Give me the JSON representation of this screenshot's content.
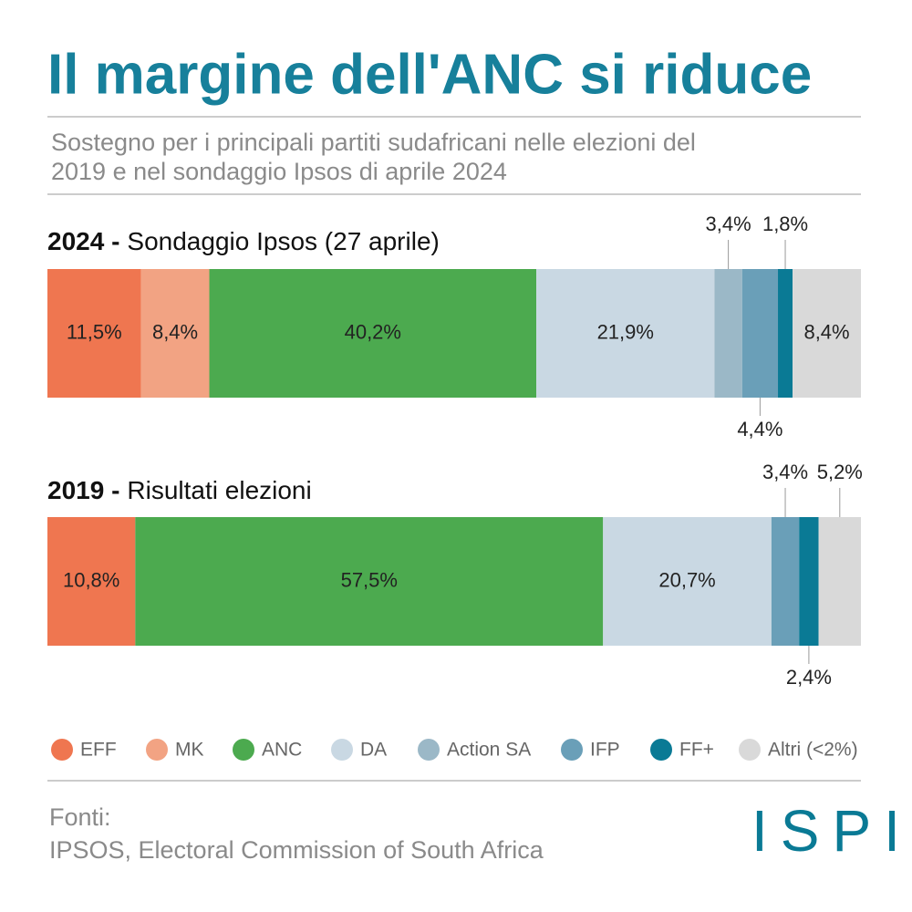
{
  "title": "Il margine dell'ANC si riduce",
  "subtitle": [
    "Sostegno per i principali partiti sudafricani nelle elezioni del",
    "2019 e nel sondaggio Ipsos di aprile 2024"
  ],
  "chart_data": [
    {
      "type": "stacked-bar",
      "label": "2024 -",
      "title": "Sondaggio Ipsos (27 aprile)",
      "series": [
        {
          "name": "EFF",
          "color": "#ef7650",
          "values": [
            11.5
          ],
          "value_labels": [
            "11,5%"
          ]
        },
        {
          "name": "MK",
          "color": "#f2a383",
          "values": [
            8.4
          ],
          "value_labels": [
            "8,4%"
          ]
        },
        {
          "name": "ANC",
          "color": "#4caa4f",
          "values": [
            40.2
          ],
          "value_labels": [
            "40,2%"
          ]
        },
        {
          "name": "DA",
          "color": "#c9d8e3",
          "values": [
            21.9
          ],
          "value_labels": [
            "21,9%"
          ]
        },
        {
          "name": "Action SA",
          "color": "#9bb8c7",
          "values": [
            3.4
          ],
          "value_labels": [
            "3,4%"
          ]
        },
        {
          "name": "IFP",
          "color": "#6a9fb8",
          "values": [
            4.4
          ],
          "value_labels": [
            "4,4%"
          ]
        },
        {
          "name": "FF+",
          "color": "#0a7a95",
          "values": [
            1.8
          ],
          "value_labels": [
            "1,8%"
          ]
        },
        {
          "name": "Altri (<2%)",
          "color": "#d9d9d9",
          "values": [
            8.4
          ],
          "value_labels": [
            "8,4%"
          ]
        }
      ]
    },
    {
      "type": "stacked-bar",
      "label": "2019 -",
      "title": "Risultati elezioni",
      "series": [
        {
          "name": "EFF",
          "color": "#ef7650",
          "values": [
            10.8
          ],
          "value_labels": [
            "10,8%"
          ]
        },
        {
          "name": "ANC",
          "color": "#4caa4f",
          "values": [
            57.5
          ],
          "value_labels": [
            "57,5%"
          ]
        },
        {
          "name": "DA",
          "color": "#c9d8e3",
          "values": [
            20.7
          ],
          "value_labels": [
            "20,7%"
          ]
        },
        {
          "name": "IFP",
          "color": "#6a9fb8",
          "values": [
            3.4
          ],
          "value_labels": [
            "3,4%"
          ]
        },
        {
          "name": "FF+",
          "color": "#0a7a95",
          "values": [
            2.4
          ],
          "value_labels": [
            "2,4%"
          ]
        },
        {
          "name": "Altri (<2%)",
          "color": "#d9d9d9",
          "values": [
            5.2
          ],
          "value_labels": [
            "5,2%"
          ]
        }
      ]
    }
  ],
  "sources": {
    "label": "Fonti:",
    "text": "IPSOS, Electoral Commission of South Africa"
  },
  "logo": "ISPI"
}
